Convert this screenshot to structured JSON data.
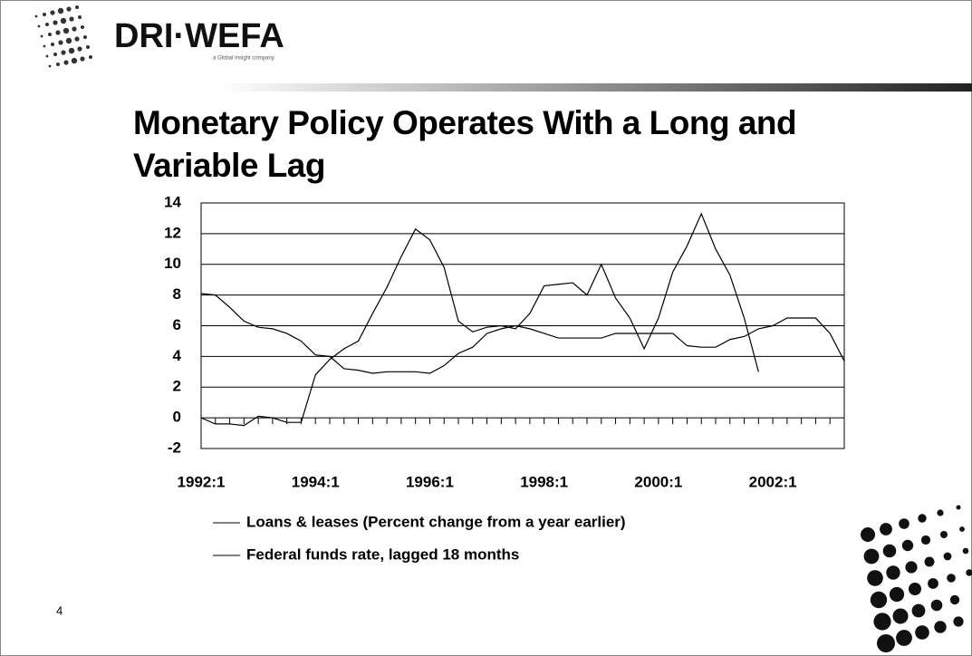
{
  "logo": "DRI·WEFA",
  "logo_tagline": "a Global Insight company",
  "page_number": "4",
  "chart_data": {
    "type": "line",
    "title": "Monetary Policy Operates With a Long and Variable Lag",
    "categories": [
      "1992:1",
      null,
      null,
      null,
      null,
      null,
      null,
      null,
      "1994:1",
      null,
      null,
      null,
      null,
      null,
      null,
      null,
      "1996:1",
      null,
      null,
      null,
      null,
      null,
      null,
      null,
      "1998:1",
      null,
      null,
      null,
      null,
      null,
      null,
      null,
      "2000:1",
      null,
      null,
      null,
      null,
      null,
      null,
      null,
      "2002:1",
      null,
      null,
      null,
      null,
      null
    ],
    "series": [
      {
        "name": "Loans & leases (Percent change from a year earlier)",
        "color": "#000000",
        "values": [
          0,
          -0.4,
          -0.4,
          -0.5,
          0.1,
          0.0,
          -0.3,
          -0.3,
          2.8,
          3.8,
          4.5,
          5.0,
          6.8,
          8.5,
          10.5,
          12.3,
          11.6,
          9.8,
          6.3,
          5.6,
          5.9,
          6.0,
          5.8,
          6.8,
          8.6,
          8.7,
          8.8,
          8.0,
          10.0,
          7.8,
          6.5,
          4.5,
          6.5,
          9.5,
          11.2,
          13.3,
          11.0,
          9.3,
          6.5,
          3.0,
          null,
          null,
          null,
          null,
          null,
          null
        ]
      },
      {
        "name": "Federal funds rate, lagged 18 months",
        "color": "#000000",
        "values": [
          8.1,
          8.0,
          7.2,
          6.3,
          5.9,
          5.8,
          5.5,
          5.0,
          4.1,
          4.0,
          3.2,
          3.1,
          2.9,
          3.0,
          3.0,
          3.0,
          2.9,
          3.4,
          4.2,
          4.6,
          5.5,
          5.8,
          6.0,
          5.8,
          5.5,
          5.2,
          5.2,
          5.2,
          5.2,
          5.5,
          5.5,
          5.5,
          5.5,
          5.5,
          4.7,
          4.6,
          4.6,
          5.1,
          5.3,
          5.8,
          6.0,
          6.5,
          6.5,
          6.5,
          5.5,
          3.7
        ]
      }
    ],
    "ylim": [
      -2,
      14
    ],
    "yticks": [
      -2,
      0,
      2,
      4,
      6,
      8,
      10,
      12,
      14
    ],
    "grid": true
  }
}
